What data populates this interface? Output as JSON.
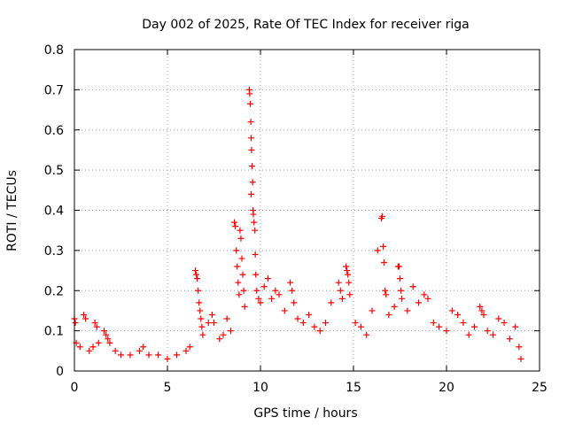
{
  "chart_data": {
    "type": "scatter",
    "title": "Day 002 of 2025, Rate Of TEC Index for receiver riga",
    "xlabel": "GPS time / hours",
    "ylabel": "ROTI / TECUs",
    "xlim": [
      0,
      25
    ],
    "ylim": [
      0,
      0.8
    ],
    "x_ticks": [
      0,
      5,
      10,
      15,
      20,
      25
    ],
    "x_tick_labels": [
      "0",
      "5",
      "10",
      "15",
      "20",
      "25"
    ],
    "y_ticks": [
      0,
      0.1,
      0.2,
      0.3,
      0.4,
      0.5,
      0.6,
      0.7,
      0.8
    ],
    "y_tick_labels": [
      "0",
      "0.1",
      "0.2",
      "0.3",
      "0.4",
      "0.5",
      "0.6",
      "0.7",
      "0.8"
    ],
    "grid": true,
    "marker": "+",
    "marker_color": "#ff0000",
    "series": [
      {
        "name": "ROTI",
        "points": [
          [
            0.0,
            0.13
          ],
          [
            0.05,
            0.12
          ],
          [
            0.1,
            0.07
          ],
          [
            0.3,
            0.06
          ],
          [
            0.5,
            0.14
          ],
          [
            0.6,
            0.13
          ],
          [
            0.8,
            0.05
          ],
          [
            1.0,
            0.06
          ],
          [
            1.1,
            0.12
          ],
          [
            1.2,
            0.11
          ],
          [
            1.3,
            0.07
          ],
          [
            1.6,
            0.1
          ],
          [
            1.7,
            0.09
          ],
          [
            1.8,
            0.08
          ],
          [
            1.9,
            0.07
          ],
          [
            2.2,
            0.05
          ],
          [
            2.5,
            0.04
          ],
          [
            3.0,
            0.04
          ],
          [
            3.5,
            0.05
          ],
          [
            3.7,
            0.06
          ],
          [
            4.0,
            0.04
          ],
          [
            4.5,
            0.04
          ],
          [
            5.0,
            0.03
          ],
          [
            5.5,
            0.04
          ],
          [
            6.0,
            0.05
          ],
          [
            6.2,
            0.06
          ],
          [
            6.5,
            0.25
          ],
          [
            6.55,
            0.24
          ],
          [
            6.6,
            0.23
          ],
          [
            6.65,
            0.2
          ],
          [
            6.7,
            0.17
          ],
          [
            6.75,
            0.15
          ],
          [
            6.8,
            0.13
          ],
          [
            6.85,
            0.11
          ],
          [
            6.9,
            0.09
          ],
          [
            7.2,
            0.12
          ],
          [
            7.4,
            0.14
          ],
          [
            7.5,
            0.12
          ],
          [
            7.8,
            0.08
          ],
          [
            8.0,
            0.09
          ],
          [
            8.2,
            0.13
          ],
          [
            8.4,
            0.1
          ],
          [
            8.6,
            0.37
          ],
          [
            8.65,
            0.36
          ],
          [
            8.7,
            0.3
          ],
          [
            8.75,
            0.26
          ],
          [
            8.8,
            0.22
          ],
          [
            8.85,
            0.19
          ],
          [
            8.9,
            0.35
          ],
          [
            8.95,
            0.33
          ],
          [
            9.0,
            0.28
          ],
          [
            9.05,
            0.24
          ],
          [
            9.1,
            0.2
          ],
          [
            9.15,
            0.16
          ],
          [
            9.4,
            0.7
          ],
          [
            9.42,
            0.69
          ],
          [
            9.45,
            0.665
          ],
          [
            9.48,
            0.62
          ],
          [
            9.5,
            0.58
          ],
          [
            9.52,
            0.55
          ],
          [
            9.55,
            0.51
          ],
          [
            9.58,
            0.47
          ],
          [
            9.5,
            0.44
          ],
          [
            9.6,
            0.4
          ],
          [
            9.62,
            0.39
          ],
          [
            9.65,
            0.37
          ],
          [
            9.7,
            0.35
          ],
          [
            9.72,
            0.29
          ],
          [
            9.75,
            0.24
          ],
          [
            9.8,
            0.2
          ],
          [
            9.9,
            0.18
          ],
          [
            10.0,
            0.17
          ],
          [
            10.2,
            0.21
          ],
          [
            10.4,
            0.23
          ],
          [
            10.6,
            0.18
          ],
          [
            10.8,
            0.2
          ],
          [
            11.0,
            0.19
          ],
          [
            11.3,
            0.15
          ],
          [
            11.6,
            0.22
          ],
          [
            11.7,
            0.2
          ],
          [
            11.8,
            0.17
          ],
          [
            12.0,
            0.13
          ],
          [
            12.3,
            0.12
          ],
          [
            12.6,
            0.14
          ],
          [
            12.9,
            0.11
          ],
          [
            13.2,
            0.1
          ],
          [
            13.5,
            0.12
          ],
          [
            13.8,
            0.17
          ],
          [
            14.2,
            0.22
          ],
          [
            14.3,
            0.2
          ],
          [
            14.4,
            0.18
          ],
          [
            14.6,
            0.26
          ],
          [
            14.65,
            0.25
          ],
          [
            14.7,
            0.24
          ],
          [
            14.75,
            0.22
          ],
          [
            14.8,
            0.19
          ],
          [
            15.1,
            0.12
          ],
          [
            15.4,
            0.11
          ],
          [
            15.7,
            0.09
          ],
          [
            16.0,
            0.15
          ],
          [
            16.3,
            0.3
          ],
          [
            16.5,
            0.38
          ],
          [
            16.55,
            0.385
          ],
          [
            16.6,
            0.31
          ],
          [
            16.65,
            0.27
          ],
          [
            16.7,
            0.2
          ],
          [
            16.75,
            0.19
          ],
          [
            16.9,
            0.14
          ],
          [
            17.2,
            0.16
          ],
          [
            17.4,
            0.26
          ],
          [
            17.45,
            0.26
          ],
          [
            17.5,
            0.23
          ],
          [
            17.55,
            0.2
          ],
          [
            17.6,
            0.18
          ],
          [
            17.9,
            0.15
          ],
          [
            18.2,
            0.21
          ],
          [
            18.5,
            0.17
          ],
          [
            18.8,
            0.19
          ],
          [
            19.0,
            0.18
          ],
          [
            19.3,
            0.12
          ],
          [
            19.6,
            0.11
          ],
          [
            20.0,
            0.1
          ],
          [
            20.3,
            0.15
          ],
          [
            20.6,
            0.14
          ],
          [
            20.9,
            0.12
          ],
          [
            21.2,
            0.09
          ],
          [
            21.5,
            0.11
          ],
          [
            21.8,
            0.16
          ],
          [
            21.9,
            0.15
          ],
          [
            22.0,
            0.14
          ],
          [
            22.2,
            0.1
          ],
          [
            22.5,
            0.09
          ],
          [
            22.8,
            0.13
          ],
          [
            23.1,
            0.12
          ],
          [
            23.4,
            0.08
          ],
          [
            23.7,
            0.11
          ],
          [
            23.9,
            0.06
          ],
          [
            24.0,
            0.03
          ]
        ]
      }
    ]
  }
}
